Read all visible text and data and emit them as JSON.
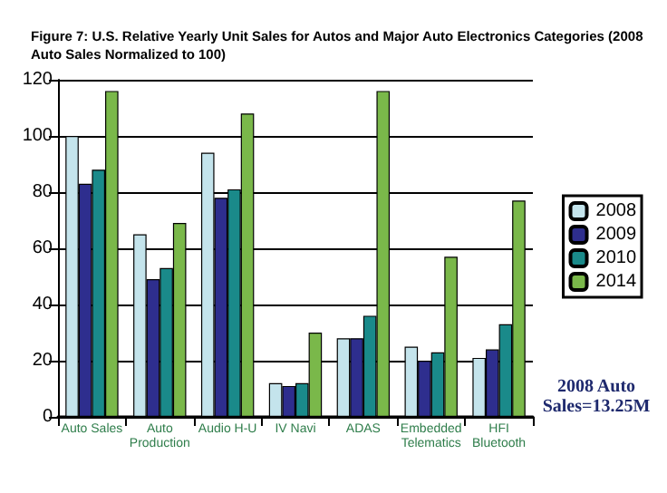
{
  "chart_data": {
    "type": "bar",
    "title": "Figure 7: U.S. Relative Yearly Unit Sales for Autos and Major Auto Electronics Categories (2008 Auto Sales Normalized to 100)",
    "categories": [
      "Auto Sales",
      "Auto\nProduction",
      "Audio H-U",
      "IV Navi",
      "ADAS",
      "Embedded\nTelematics",
      "HFI\nBluetooth"
    ],
    "series": [
      {
        "name": "2008",
        "color": "#c4e4ec",
        "values": [
          100,
          65,
          94,
          12,
          28,
          25,
          21
        ]
      },
      {
        "name": "2009",
        "color": "#2e2e8e",
        "values": [
          83,
          49,
          78,
          11,
          28,
          20,
          24
        ]
      },
      {
        "name": "2010",
        "color": "#1a8a8a",
        "values": [
          88,
          53,
          81,
          12,
          36,
          23,
          33
        ]
      },
      {
        "name": "2014",
        "color": "#7ab84a",
        "values": [
          116,
          69,
          108,
          30,
          116,
          57,
          77
        ]
      }
    ],
    "ylim": [
      0,
      120
    ],
    "yticks": [
      0,
      20,
      40,
      60,
      80,
      100,
      120
    ],
    "grid": "y",
    "legend": "right",
    "annotations": [
      "2008 Auto\nSales=13.25M"
    ]
  }
}
